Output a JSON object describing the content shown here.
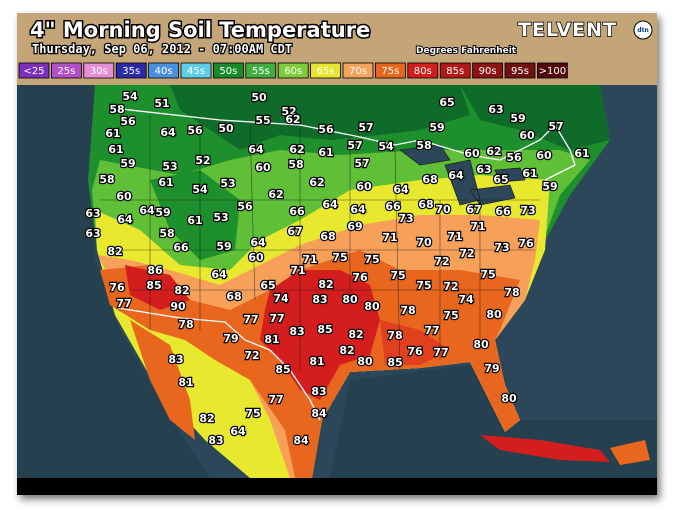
{
  "header": {
    "title": "4\" Morning Soil Temperature",
    "subtitle": "Thursday, Sep 06, 2012 - 07:00AM CDT",
    "units": "Degrees Fahrenheit",
    "brand": "TELVENT",
    "brand_sub": "dtn"
  },
  "legend": [
    "<25",
    "25s",
    "30s",
    "35s",
    "40s",
    "45s",
    "50s",
    "55s",
    "60s",
    "65s",
    "70s",
    "75s",
    "80s",
    "85s",
    "90s",
    "95s",
    ">100"
  ],
  "stations": [
    54,
    51,
    50,
    52,
    55,
    58,
    56,
    61,
    64,
    56,
    50,
    62,
    56,
    57,
    65,
    63,
    59,
    59,
    60,
    57,
    61,
    59,
    53,
    52,
    64,
    62,
    61,
    57,
    54,
    58,
    62,
    56,
    60,
    61,
    60,
    58,
    61,
    54,
    53,
    60,
    58,
    62,
    57,
    60,
    64,
    68,
    64,
    63,
    65,
    61,
    59,
    60,
    64,
    59,
    56,
    62,
    66,
    64,
    64,
    66,
    73,
    68,
    70,
    67,
    66,
    73,
    63,
    64,
    61,
    53,
    63,
    58,
    67,
    68,
    69,
    71,
    70,
    71,
    71,
    73,
    76,
    82,
    66,
    59,
    64,
    60,
    71,
    75,
    75,
    72,
    72,
    71,
    86,
    64,
    82,
    76,
    75,
    75,
    76,
    85,
    82,
    65,
    75,
    72,
    78,
    77,
    90,
    68,
    74,
    83,
    80,
    80,
    74,
    78,
    75,
    80,
    78,
    77,
    77,
    83,
    85,
    82,
    78,
    77,
    79,
    81,
    82,
    76,
    77,
    80,
    72,
    81,
    80,
    85,
    83,
    85,
    79,
    81,
    83,
    77,
    80,
    75,
    84,
    82,
    64,
    83,
    84
  ]
}
